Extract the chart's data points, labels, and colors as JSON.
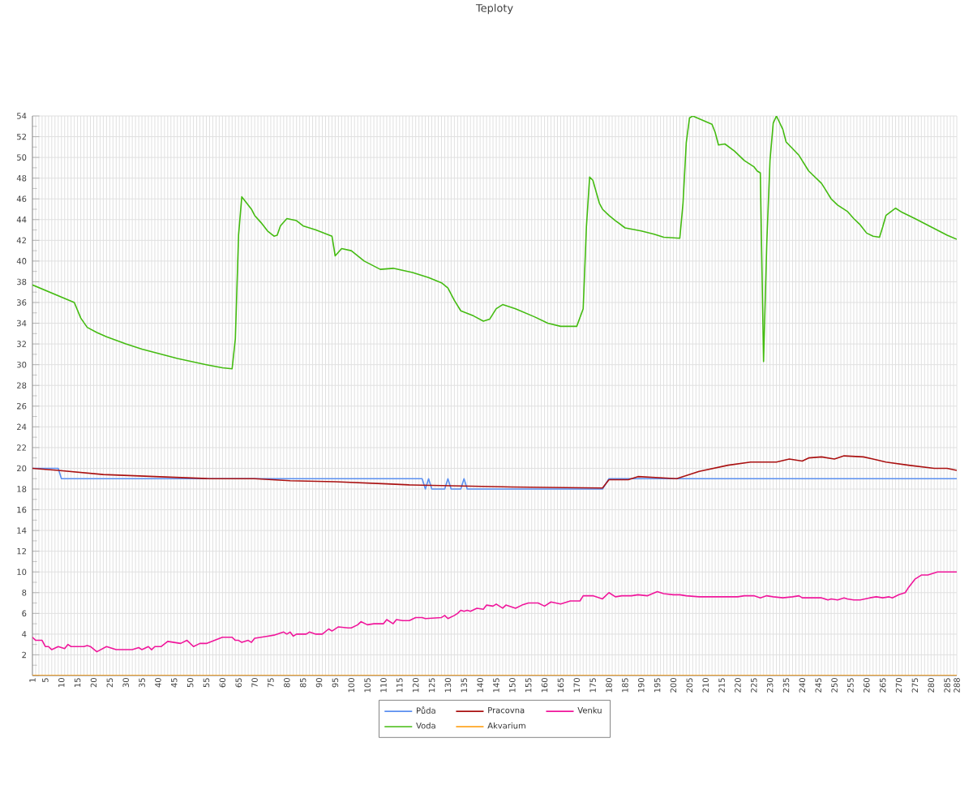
{
  "chart_data": {
    "type": "line",
    "title": "Teploty",
    "xlim": [
      1,
      288
    ],
    "xticks": [
      1,
      {
        "value": 2,
        "label": null
      },
      {
        "value": 3,
        "label": null
      },
      {
        "value": 4,
        "label": null
      },
      5,
      {
        "value": 6,
        "label": null
      },
      {
        "value": 7,
        "label": null
      },
      {
        "value": 8,
        "label": null
      },
      {
        "value": 9,
        "label": null
      },
      10,
      {
        "value": 11,
        "label": null
      },
      {
        "value": 12,
        "label": null
      },
      {
        "value": 13,
        "label": null
      },
      {
        "value": 14,
        "label": null
      },
      15,
      {
        "value": 16,
        "label": null
      },
      {
        "value": 17,
        "label": null
      },
      {
        "value": 18,
        "label": null
      },
      {
        "value": 19,
        "label": null
      },
      20,
      {
        "value": 21,
        "label": null
      },
      {
        "value": 22,
        "label": null
      },
      {
        "value": 23,
        "label": null
      },
      {
        "value": 24,
        "label": null
      },
      25,
      {
        "value": 26,
        "label": null
      },
      {
        "value": 27,
        "label": null
      },
      {
        "value": 28,
        "label": null
      },
      {
        "value": 29,
        "label": null
      },
      30,
      {
        "value": 31,
        "label": null
      },
      {
        "value": 32,
        "label": null
      },
      {
        "value": 33,
        "label": null
      },
      {
        "value": 34,
        "label": null
      },
      35,
      {
        "value": 36,
        "label": null
      },
      {
        "value": 37,
        "label": null
      },
      {
        "value": 38,
        "label": null
      },
      {
        "value": 39,
        "label": null
      },
      40,
      {
        "value": 41,
        "label": null
      },
      {
        "value": 42,
        "label": null
      },
      {
        "value": 43,
        "label": null
      },
      {
        "value": 44,
        "label": null
      },
      45,
      {
        "value": 46,
        "label": null
      },
      {
        "value": 47,
        "label": null
      },
      {
        "value": 48,
        "label": null
      },
      {
        "value": 49,
        "label": null
      },
      50,
      {
        "value": 51,
        "label": null
      },
      {
        "value": 52,
        "label": null
      },
      {
        "value": 53,
        "label": null
      },
      {
        "value": 54,
        "label": null
      },
      55,
      {
        "value": 56,
        "label": null
      },
      {
        "value": 57,
        "label": null
      },
      {
        "value": 58,
        "label": null
      },
      {
        "value": 59,
        "label": null
      },
      60,
      {
        "value": 61,
        "label": null
      },
      {
        "value": 62,
        "label": null
      },
      {
        "value": 63,
        "label": null
      },
      {
        "value": 64,
        "label": null
      },
      65,
      {
        "value": 66,
        "label": null
      },
      {
        "value": 67,
        "label": null
      },
      {
        "value": 68,
        "label": null
      },
      {
        "value": 69,
        "label": null
      },
      70,
      {
        "value": 71,
        "label": null
      },
      {
        "value": 72,
        "label": null
      },
      {
        "value": 73,
        "label": null
      },
      {
        "value": 74,
        "label": null
      },
      75,
      {
        "value": 76,
        "label": null
      },
      {
        "value": 77,
        "label": null
      },
      {
        "value": 78,
        "label": null
      },
      {
        "value": 79,
        "label": null
      },
      80,
      {
        "value": 81,
        "label": null
      },
      {
        "value": 82,
        "label": null
      },
      {
        "value": 83,
        "label": null
      },
      {
        "value": 84,
        "label": null
      },
      85,
      {
        "value": 86,
        "label": null
      },
      {
        "value": 87,
        "label": null
      },
      {
        "value": 88,
        "label": null
      },
      {
        "value": 89,
        "label": null
      },
      90,
      {
        "value": 91,
        "label": null
      },
      {
        "value": 92,
        "label": null
      },
      {
        "value": 93,
        "label": null
      },
      {
        "value": 94,
        "label": null
      },
      95,
      {
        "value": 96,
        "label": null
      },
      {
        "value": 97,
        "label": null
      },
      {
        "value": 98,
        "label": null
      },
      {
        "value": 99,
        "label": null
      },
      100,
      {
        "value": 101,
        "label": null
      },
      {
        "value": 102,
        "label": null
      },
      {
        "value": 103,
        "label": null
      },
      {
        "value": 104,
        "label": null
      },
      105,
      {
        "value": 106,
        "label": null
      },
      {
        "value": 107,
        "label": null
      },
      {
        "value": 108,
        "label": null
      },
      {
        "value": 109,
        "label": null
      },
      110,
      {
        "value": 111,
        "label": null
      },
      {
        "value": 112,
        "label": null
      },
      {
        "value": 113,
        "label": null
      },
      {
        "value": 114,
        "label": null
      },
      115,
      {
        "value": 116,
        "label": null
      },
      {
        "value": 117,
        "label": null
      },
      {
        "value": 118,
        "label": null
      },
      {
        "value": 119,
        "label": null
      },
      120,
      {
        "value": 121,
        "label": null
      },
      {
        "value": 122,
        "label": null
      },
      {
        "value": 123,
        "label": null
      },
      {
        "value": 124,
        "label": null
      },
      125,
      {
        "value": 126,
        "label": null
      },
      {
        "value": 127,
        "label": null
      },
      {
        "value": 128,
        "label": null
      },
      {
        "value": 129,
        "label": null
      },
      130,
      {
        "value": 131,
        "label": null
      },
      {
        "value": 132,
        "label": null
      },
      {
        "value": 133,
        "label": null
      },
      {
        "value": 134,
        "label": null
      },
      135,
      {
        "value": 136,
        "label": null
      },
      {
        "value": 137,
        "label": null
      },
      {
        "value": 138,
        "label": null
      },
      {
        "value": 139,
        "label": null
      },
      140,
      {
        "value": 141,
        "label": null
      },
      {
        "value": 142,
        "label": null
      },
      {
        "value": 143,
        "label": null
      },
      {
        "value": 144,
        "label": null
      },
      145,
      {
        "value": 146,
        "label": null
      },
      {
        "value": 147,
        "label": null
      },
      {
        "value": 148,
        "label": null
      },
      {
        "value": 149,
        "label": null
      },
      150,
      {
        "value": 151,
        "label": null
      },
      {
        "value": 152,
        "label": null
      },
      {
        "value": 153,
        "label": null
      },
      {
        "value": 154,
        "label": null
      },
      155,
      {
        "value": 156,
        "label": null
      },
      {
        "value": 157,
        "label": null
      },
      {
        "value": 158,
        "label": null
      },
      {
        "value": 159,
        "label": null
      },
      160,
      {
        "value": 161,
        "label": null
      },
      {
        "value": 162,
        "label": null
      },
      {
        "value": 163,
        "label": null
      },
      {
        "value": 164,
        "label": null
      },
      165,
      {
        "value": 166,
        "label": null
      },
      {
        "value": 167,
        "label": null
      },
      {
        "value": 168,
        "label": null
      },
      {
        "value": 169,
        "label": null
      },
      170,
      {
        "value": 171,
        "label": null
      },
      {
        "value": 172,
        "label": null
      },
      {
        "value": 173,
        "label": null
      },
      {
        "value": 174,
        "label": null
      },
      175,
      {
        "value": 176,
        "label": null
      },
      {
        "value": 177,
        "label": null
      },
      {
        "value": 178,
        "label": null
      },
      {
        "value": 179,
        "label": null
      },
      180,
      {
        "value": 181,
        "label": null
      },
      {
        "value": 182,
        "label": null
      },
      {
        "value": 183,
        "label": null
      },
      {
        "value": 184,
        "label": null
      },
      185,
      {
        "value": 186,
        "label": null
      },
      {
        "value": 187,
        "label": null
      },
      {
        "value": 188,
        "label": null
      },
      {
        "value": 189,
        "label": null
      },
      190,
      {
        "value": 191,
        "label": null
      },
      {
        "value": 192,
        "label": null
      },
      {
        "value": 193,
        "label": null
      },
      {
        "value": 194,
        "label": null
      },
      195,
      {
        "value": 196,
        "label": null
      },
      {
        "value": 197,
        "label": null
      },
      {
        "value": 198,
        "label": null
      },
      {
        "value": 199,
        "label": null
      },
      200,
      {
        "value": 201,
        "label": null
      },
      {
        "value": 202,
        "label": null
      },
      {
        "value": 203,
        "label": null
      },
      {
        "value": 204,
        "label": null
      },
      205,
      {
        "value": 206,
        "label": null
      },
      {
        "value": 207,
        "label": null
      },
      {
        "value": 208,
        "label": null
      },
      {
        "value": 209,
        "label": null
      },
      210,
      {
        "value": 211,
        "label": null
      },
      {
        "value": 212,
        "label": null
      },
      {
        "value": 213,
        "label": null
      },
      {
        "value": 214,
        "label": null
      },
      215,
      {
        "value": 216,
        "label": null
      },
      {
        "value": 217,
        "label": null
      },
      {
        "value": 218,
        "label": null
      },
      {
        "value": 219,
        "label": null
      },
      220,
      {
        "value": 221,
        "label": null
      },
      {
        "value": 222,
        "label": null
      },
      {
        "value": 223,
        "label": null
      },
      {
        "value": 224,
        "label": null
      },
      225,
      {
        "value": 226,
        "label": null
      },
      {
        "value": 227,
        "label": null
      },
      {
        "value": 228,
        "label": null
      },
      {
        "value": 229,
        "label": null
      },
      230,
      {
        "value": 231,
        "label": null
      },
      {
        "value": 232,
        "label": null
      },
      {
        "value": 233,
        "label": null
      },
      {
        "value": 234,
        "label": null
      },
      235,
      {
        "value": 236,
        "label": null
      },
      {
        "value": 237,
        "label": null
      },
      {
        "value": 238,
        "label": null
      },
      {
        "value": 239,
        "label": null
      },
      240,
      {
        "value": 241,
        "label": null
      },
      {
        "value": 242,
        "label": null
      },
      {
        "value": 243,
        "label": null
      },
      {
        "value": 244,
        "label": null
      },
      245,
      {
        "value": 246,
        "label": null
      },
      {
        "value": 247,
        "label": null
      },
      {
        "value": 248,
        "label": null
      },
      {
        "value": 249,
        "label": null
      },
      250,
      {
        "value": 251,
        "label": null
      },
      {
        "value": 252,
        "label": null
      },
      {
        "value": 253,
        "label": null
      },
      {
        "value": 254,
        "label": null
      },
      255,
      {
        "value": 256,
        "label": null
      },
      {
        "value": 257,
        "label": null
      },
      {
        "value": 258,
        "label": null
      },
      {
        "value": 259,
        "label": null
      },
      260,
      {
        "value": 261,
        "label": null
      },
      {
        "value": 262,
        "label": null
      },
      {
        "value": 263,
        "label": null
      },
      {
        "value": 264,
        "label": null
      },
      265,
      {
        "value": 266,
        "label": null
      },
      {
        "value": 267,
        "label": null
      },
      {
        "value": 268,
        "label": null
      },
      {
        "value": 269,
        "label": null
      },
      270,
      {
        "value": 271,
        "label": null
      },
      {
        "value": 272,
        "label": null
      },
      {
        "value": 273,
        "label": null
      },
      {
        "value": 274,
        "label": null
      },
      275,
      {
        "value": 276,
        "label": null
      },
      {
        "value": 277,
        "label": null
      },
      {
        "value": 278,
        "label": null
      },
      {
        "value": 279,
        "label": null
      },
      280,
      {
        "value": 281,
        "label": null
      },
      {
        "value": 282,
        "label": null
      },
      {
        "value": 283,
        "label": null
      },
      {
        "value": 284,
        "label": null
      },
      285,
      {
        "value": 286,
        "label": null
      },
      {
        "value": 287,
        "label": null
      },
      288
    ],
    "ylim": [
      0,
      54
    ],
    "yticks": [
      {
        "value": 0,
        "label": null
      },
      2,
      4,
      6,
      8,
      10,
      12,
      14,
      16,
      18,
      20,
      22,
      24,
      26,
      28,
      30,
      32,
      34,
      36,
      38,
      40,
      42,
      44,
      46,
      48,
      50,
      52,
      54
    ],
    "grid": true,
    "legend": "bottom",
    "marker": "none",
    "series": [
      {
        "name": "Půda",
        "color": "#5b8ff0",
        "x": [
          1,
          9,
          10,
          122,
          123,
          124,
          125,
          129,
          130,
          131,
          134,
          135,
          136,
          178,
          180,
          288
        ],
        "values": [
          20,
          20,
          19,
          19,
          18,
          19,
          18,
          18,
          19,
          18,
          18,
          19,
          18,
          18,
          19,
          19
        ]
      },
      {
        "name": "Voda",
        "color": "#44bb11",
        "x": [
          1,
          14,
          16,
          18,
          21,
          24,
          30,
          35,
          46,
          55,
          60,
          63,
          64,
          65,
          66,
          67,
          69,
          70,
          72,
          74,
          76,
          77,
          78,
          80,
          83,
          85,
          89,
          94,
          95,
          97,
          100,
          104,
          109,
          113,
          119,
          124,
          128,
          130,
          132,
          134,
          138,
          141,
          143,
          145,
          147,
          151,
          157,
          161,
          165,
          170,
          172,
          173,
          174,
          175,
          177,
          178,
          180,
          182,
          185,
          190,
          194,
          197,
          202,
          203,
          204,
          205,
          206,
          212,
          213,
          214,
          216,
          219,
          222,
          225,
          226,
          227,
          228,
          229,
          230,
          231,
          232,
          234,
          235,
          239,
          242,
          246,
          247,
          249,
          251,
          254,
          256,
          258,
          260,
          262,
          264,
          265,
          266,
          269,
          271,
          275,
          280,
          285,
          288
        ],
        "values": [
          37.7,
          36.0,
          34.5,
          33.6,
          33.1,
          32.7,
          32.0,
          31.5,
          30.6,
          30.0,
          29.7,
          29.6,
          32.5,
          42.5,
          46.2,
          45.8,
          45.0,
          44.4,
          43.7,
          42.9,
          42.4,
          42.5,
          43.4,
          44.1,
          43.9,
          43.4,
          43.0,
          42.4,
          40.5,
          41.2,
          41.0,
          40.0,
          39.2,
          39.3,
          38.9,
          38.4,
          37.9,
          37.4,
          36.2,
          35.2,
          34.7,
          34.2,
          34.4,
          35.4,
          35.8,
          35.4,
          34.6,
          34.0,
          33.7,
          33.7,
          35.4,
          43.3,
          48.1,
          47.8,
          45.6,
          45.0,
          44.4,
          43.9,
          43.2,
          42.9,
          42.6,
          42.3,
          42.2,
          45.6,
          51.4,
          53.8,
          54.0,
          53.2,
          52.4,
          51.2,
          51.3,
          50.6,
          49.7,
          49.1,
          48.7,
          48.5,
          30.3,
          41.7,
          49.7,
          53.3,
          54.0,
          52.7,
          51.5,
          50.2,
          48.7,
          47.5,
          47.0,
          46.0,
          45.4,
          44.8,
          44.1,
          43.5,
          42.7,
          42.4,
          42.3,
          43.3,
          44.4,
          45.1,
          44.7,
          44.1,
          43.3,
          42.5,
          42.1
        ]
      },
      {
        "name": "Pracovna",
        "color": "#aa1111",
        "x": [
          1,
          9,
          23,
          39,
          56,
          70,
          81,
          95,
          111,
          118,
          150,
          178,
          180,
          186,
          189,
          201,
          208,
          217,
          224,
          232,
          236,
          240,
          242,
          246,
          250,
          253,
          259,
          262,
          266,
          273,
          281,
          285,
          288
        ],
        "values": [
          20.0,
          19.8,
          19.4,
          19.2,
          19.0,
          19.0,
          18.8,
          18.7,
          18.5,
          18.4,
          18.2,
          18.1,
          18.9,
          18.9,
          19.2,
          19.0,
          19.7,
          20.3,
          20.6,
          20.6,
          20.9,
          20.7,
          21.0,
          21.1,
          20.9,
          21.2,
          21.1,
          20.9,
          20.6,
          20.3,
          20.0,
          20.0,
          19.8
        ]
      },
      {
        "name": "Akvarium",
        "color": "#ff9900",
        "x": [
          1,
          288
        ],
        "values": [
          0,
          0
        ]
      },
      {
        "name": "Venku",
        "color": "#f0169b",
        "x": [
          1,
          2,
          4,
          5,
          6,
          7,
          9,
          11,
          12,
          13,
          17,
          18,
          19,
          21,
          24,
          27,
          30,
          32,
          34,
          35,
          37,
          38,
          39,
          41,
          43,
          47,
          49,
          51,
          53,
          55,
          60,
          63,
          64,
          65,
          66,
          68,
          69,
          70,
          74,
          76,
          79,
          80,
          81,
          82,
          83,
          86,
          87,
          89,
          91,
          93,
          94,
          96,
          99,
          100,
          102,
          103,
          105,
          107,
          110,
          111,
          113,
          114,
          116,
          118,
          120,
          122,
          123,
          128,
          129,
          130,
          132,
          133,
          134,
          135,
          136,
          137,
          139,
          141,
          142,
          144,
          145,
          147,
          148,
          151,
          153,
          155,
          158,
          160,
          162,
          165,
          168,
          171,
          172,
          175,
          178,
          180,
          182,
          184,
          187,
          189,
          192,
          195,
          197,
          200,
          202,
          204,
          208,
          210,
          215,
          220,
          222,
          225,
          227,
          229,
          231,
          234,
          237,
          239,
          240,
          246,
          248,
          249,
          251,
          253,
          254,
          256,
          258,
          261,
          263,
          265,
          267,
          268,
          270,
          272,
          273,
          275,
          277,
          279,
          281,
          282,
          288
        ],
        "values": [
          3.7,
          3.4,
          3.4,
          2.8,
          2.8,
          2.5,
          2.8,
          2.6,
          3.0,
          2.8,
          2.8,
          2.9,
          2.8,
          2.3,
          2.8,
          2.5,
          2.5,
          2.5,
          2.7,
          2.5,
          2.8,
          2.5,
          2.8,
          2.8,
          3.3,
          3.1,
          3.4,
          2.8,
          3.1,
          3.1,
          3.7,
          3.7,
          3.4,
          3.4,
          3.2,
          3.4,
          3.2,
          3.6,
          3.8,
          3.9,
          4.2,
          4.0,
          4.2,
          3.8,
          4.0,
          4.0,
          4.2,
          4.0,
          4.0,
          4.5,
          4.3,
          4.7,
          4.6,
          4.6,
          4.9,
          5.2,
          4.9,
          5.0,
          5.0,
          5.4,
          5.0,
          5.4,
          5.3,
          5.3,
          5.6,
          5.6,
          5.5,
          5.6,
          5.8,
          5.5,
          5.8,
          6.0,
          6.3,
          6.2,
          6.3,
          6.2,
          6.5,
          6.4,
          6.8,
          6.7,
          6.9,
          6.5,
          6.8,
          6.5,
          6.8,
          7.0,
          7.0,
          6.7,
          7.1,
          6.9,
          7.2,
          7.2,
          7.7,
          7.7,
          7.4,
          8.0,
          7.6,
          7.7,
          7.7,
          7.8,
          7.7,
          8.1,
          7.9,
          7.8,
          7.8,
          7.7,
          7.6,
          7.6,
          7.6,
          7.6,
          7.7,
          7.7,
          7.5,
          7.7,
          7.6,
          7.5,
          7.6,
          7.7,
          7.5,
          7.5,
          7.3,
          7.4,
          7.3,
          7.5,
          7.4,
          7.3,
          7.3,
          7.5,
          7.6,
          7.5,
          7.6,
          7.5,
          7.8,
          8.0,
          8.5,
          9.3,
          9.7,
          9.7,
          9.9,
          10.0,
          10.0
        ]
      }
    ]
  }
}
